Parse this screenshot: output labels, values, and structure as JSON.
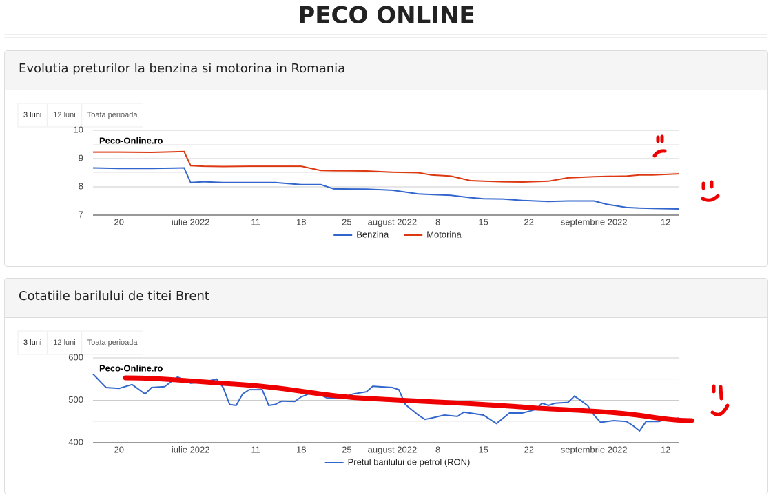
{
  "page_title": "PECO ONLINE",
  "chart_data": [
    {
      "type": "line",
      "title": "Evolutia preturilor la benzina si motorina in Romania",
      "buttons": [
        "3 luni",
        "12 luni",
        "Toata perioada"
      ],
      "watermark": "Peco-Online.ro",
      "x": [
        "2022-06-16",
        "2022-06-20",
        "2022-06-25",
        "2022-06-30",
        "2022-07-01",
        "2022-07-03",
        "2022-07-06",
        "2022-07-10",
        "2022-07-14",
        "2022-07-18",
        "2022-07-21",
        "2022-07-23",
        "2022-07-28",
        "2022-08-01",
        "2022-08-05",
        "2022-08-07",
        "2022-08-10",
        "2022-08-13",
        "2022-08-15",
        "2022-08-18",
        "2022-08-21",
        "2022-08-25",
        "2022-08-28",
        "2022-09-01",
        "2022-09-03",
        "2022-09-06",
        "2022-09-08",
        "2022-09-10",
        "2022-09-14"
      ],
      "series": [
        {
          "name": "Benzina",
          "color": "#3366cc",
          "values": [
            8.67,
            8.65,
            8.65,
            8.67,
            8.15,
            8.18,
            8.15,
            8.15,
            8.15,
            8.08,
            8.08,
            7.93,
            7.92,
            7.88,
            7.75,
            7.73,
            7.7,
            7.62,
            7.58,
            7.57,
            7.52,
            7.48,
            7.5,
            7.5,
            7.38,
            7.27,
            7.25,
            7.24,
            7.22
          ]
        },
        {
          "name": "Motorina",
          "color": "#dc3912",
          "values": [
            9.23,
            9.23,
            9.22,
            9.25,
            8.75,
            8.73,
            8.72,
            8.73,
            8.73,
            8.73,
            8.58,
            8.57,
            8.56,
            8.52,
            8.5,
            8.42,
            8.38,
            8.22,
            8.2,
            8.18,
            8.17,
            8.2,
            8.32,
            8.36,
            8.37,
            8.38,
            8.42,
            8.42,
            8.46
          ]
        }
      ],
      "xlim": [
        "2022-06-16",
        "2022-09-14"
      ],
      "xticks": [
        {
          "value": "2022-06-20",
          "label": "20"
        },
        {
          "value": "2022-07-01",
          "label": "iulie 2022"
        },
        {
          "value": "2022-07-11",
          "label": "11"
        },
        {
          "value": "2022-07-18",
          "label": "18"
        },
        {
          "value": "2022-07-25",
          "label": "25"
        },
        {
          "value": "2022-08-01",
          "label": "august 2022"
        },
        {
          "value": "2022-08-08",
          "label": "8"
        },
        {
          "value": "2022-08-15",
          "label": "15"
        },
        {
          "value": "2022-08-22",
          "label": "22"
        },
        {
          "value": "2022-09-01",
          "label": "septembrie 2022"
        },
        {
          "value": "2022-09-12",
          "label": "12"
        }
      ],
      "ylim": [
        7,
        10
      ],
      "yticks": [
        7,
        8,
        9,
        10
      ],
      "yminor": [
        7.5,
        8.5,
        9.5
      ],
      "grid": true,
      "legend": "bottom"
    },
    {
      "type": "line",
      "title": "Cotatiile barilului de titei Brent",
      "buttons": [
        "3 luni",
        "12 luni",
        "Toata perioada"
      ],
      "watermark": "Peco-Online.ro",
      "x": [
        "2022-06-16",
        "2022-06-18",
        "2022-06-20",
        "2022-06-22",
        "2022-06-24",
        "2022-06-25",
        "2022-06-27",
        "2022-06-29",
        "2022-07-01",
        "2022-07-03",
        "2022-07-05",
        "2022-07-06",
        "2022-07-07",
        "2022-07-08",
        "2022-07-09",
        "2022-07-10",
        "2022-07-12",
        "2022-07-13",
        "2022-07-14",
        "2022-07-15",
        "2022-07-17",
        "2022-07-18",
        "2022-07-20",
        "2022-07-22",
        "2022-07-24",
        "2022-07-26",
        "2022-07-28",
        "2022-07-29",
        "2022-08-01",
        "2022-08-02",
        "2022-08-03",
        "2022-08-05",
        "2022-08-06",
        "2022-08-07",
        "2022-08-09",
        "2022-08-11",
        "2022-08-12",
        "2022-08-15",
        "2022-08-17",
        "2022-08-19",
        "2022-08-21",
        "2022-08-23",
        "2022-08-24",
        "2022-08-25",
        "2022-08-26",
        "2022-08-28",
        "2022-08-29",
        "2022-08-31",
        "2022-09-01",
        "2022-09-02",
        "2022-09-04",
        "2022-09-06",
        "2022-09-07",
        "2022-09-08",
        "2022-09-09",
        "2022-09-11",
        "2022-09-12",
        "2022-09-14"
      ],
      "series": [
        {
          "name": "Pretul barilului de petrol (RON)",
          "color": "#3366cc",
          "values": [
            562,
            530,
            528,
            537,
            515,
            530,
            532,
            555,
            540,
            543,
            550,
            530,
            490,
            488,
            515,
            525,
            525,
            488,
            490,
            498,
            497,
            508,
            520,
            505,
            505,
            515,
            520,
            533,
            530,
            525,
            490,
            465,
            455,
            458,
            465,
            462,
            472,
            465,
            445,
            470,
            470,
            478,
            493,
            488,
            493,
            495,
            510,
            488,
            465,
            448,
            452,
            450,
            440,
            428,
            450,
            450,
            455,
            458
          ]
        }
      ],
      "xlim": [
        "2022-06-16",
        "2022-09-14"
      ],
      "xticks": [
        {
          "value": "2022-06-20",
          "label": "20"
        },
        {
          "value": "2022-07-01",
          "label": "iulie 2022"
        },
        {
          "value": "2022-07-11",
          "label": "11"
        },
        {
          "value": "2022-07-18",
          "label": "18"
        },
        {
          "value": "2022-07-25",
          "label": "25"
        },
        {
          "value": "2022-08-01",
          "label": "august 2022"
        },
        {
          "value": "2022-08-08",
          "label": "8"
        },
        {
          "value": "2022-08-15",
          "label": "15"
        },
        {
          "value": "2022-08-22",
          "label": "22"
        },
        {
          "value": "2022-09-01",
          "label": "septembrie 2022"
        },
        {
          "value": "2022-09-12",
          "label": "12"
        }
      ],
      "ylim": [
        400,
        600
      ],
      "yticks": [
        400,
        500,
        600
      ],
      "yminor": [
        450,
        550
      ],
      "grid": true,
      "legend": "bottom"
    }
  ]
}
